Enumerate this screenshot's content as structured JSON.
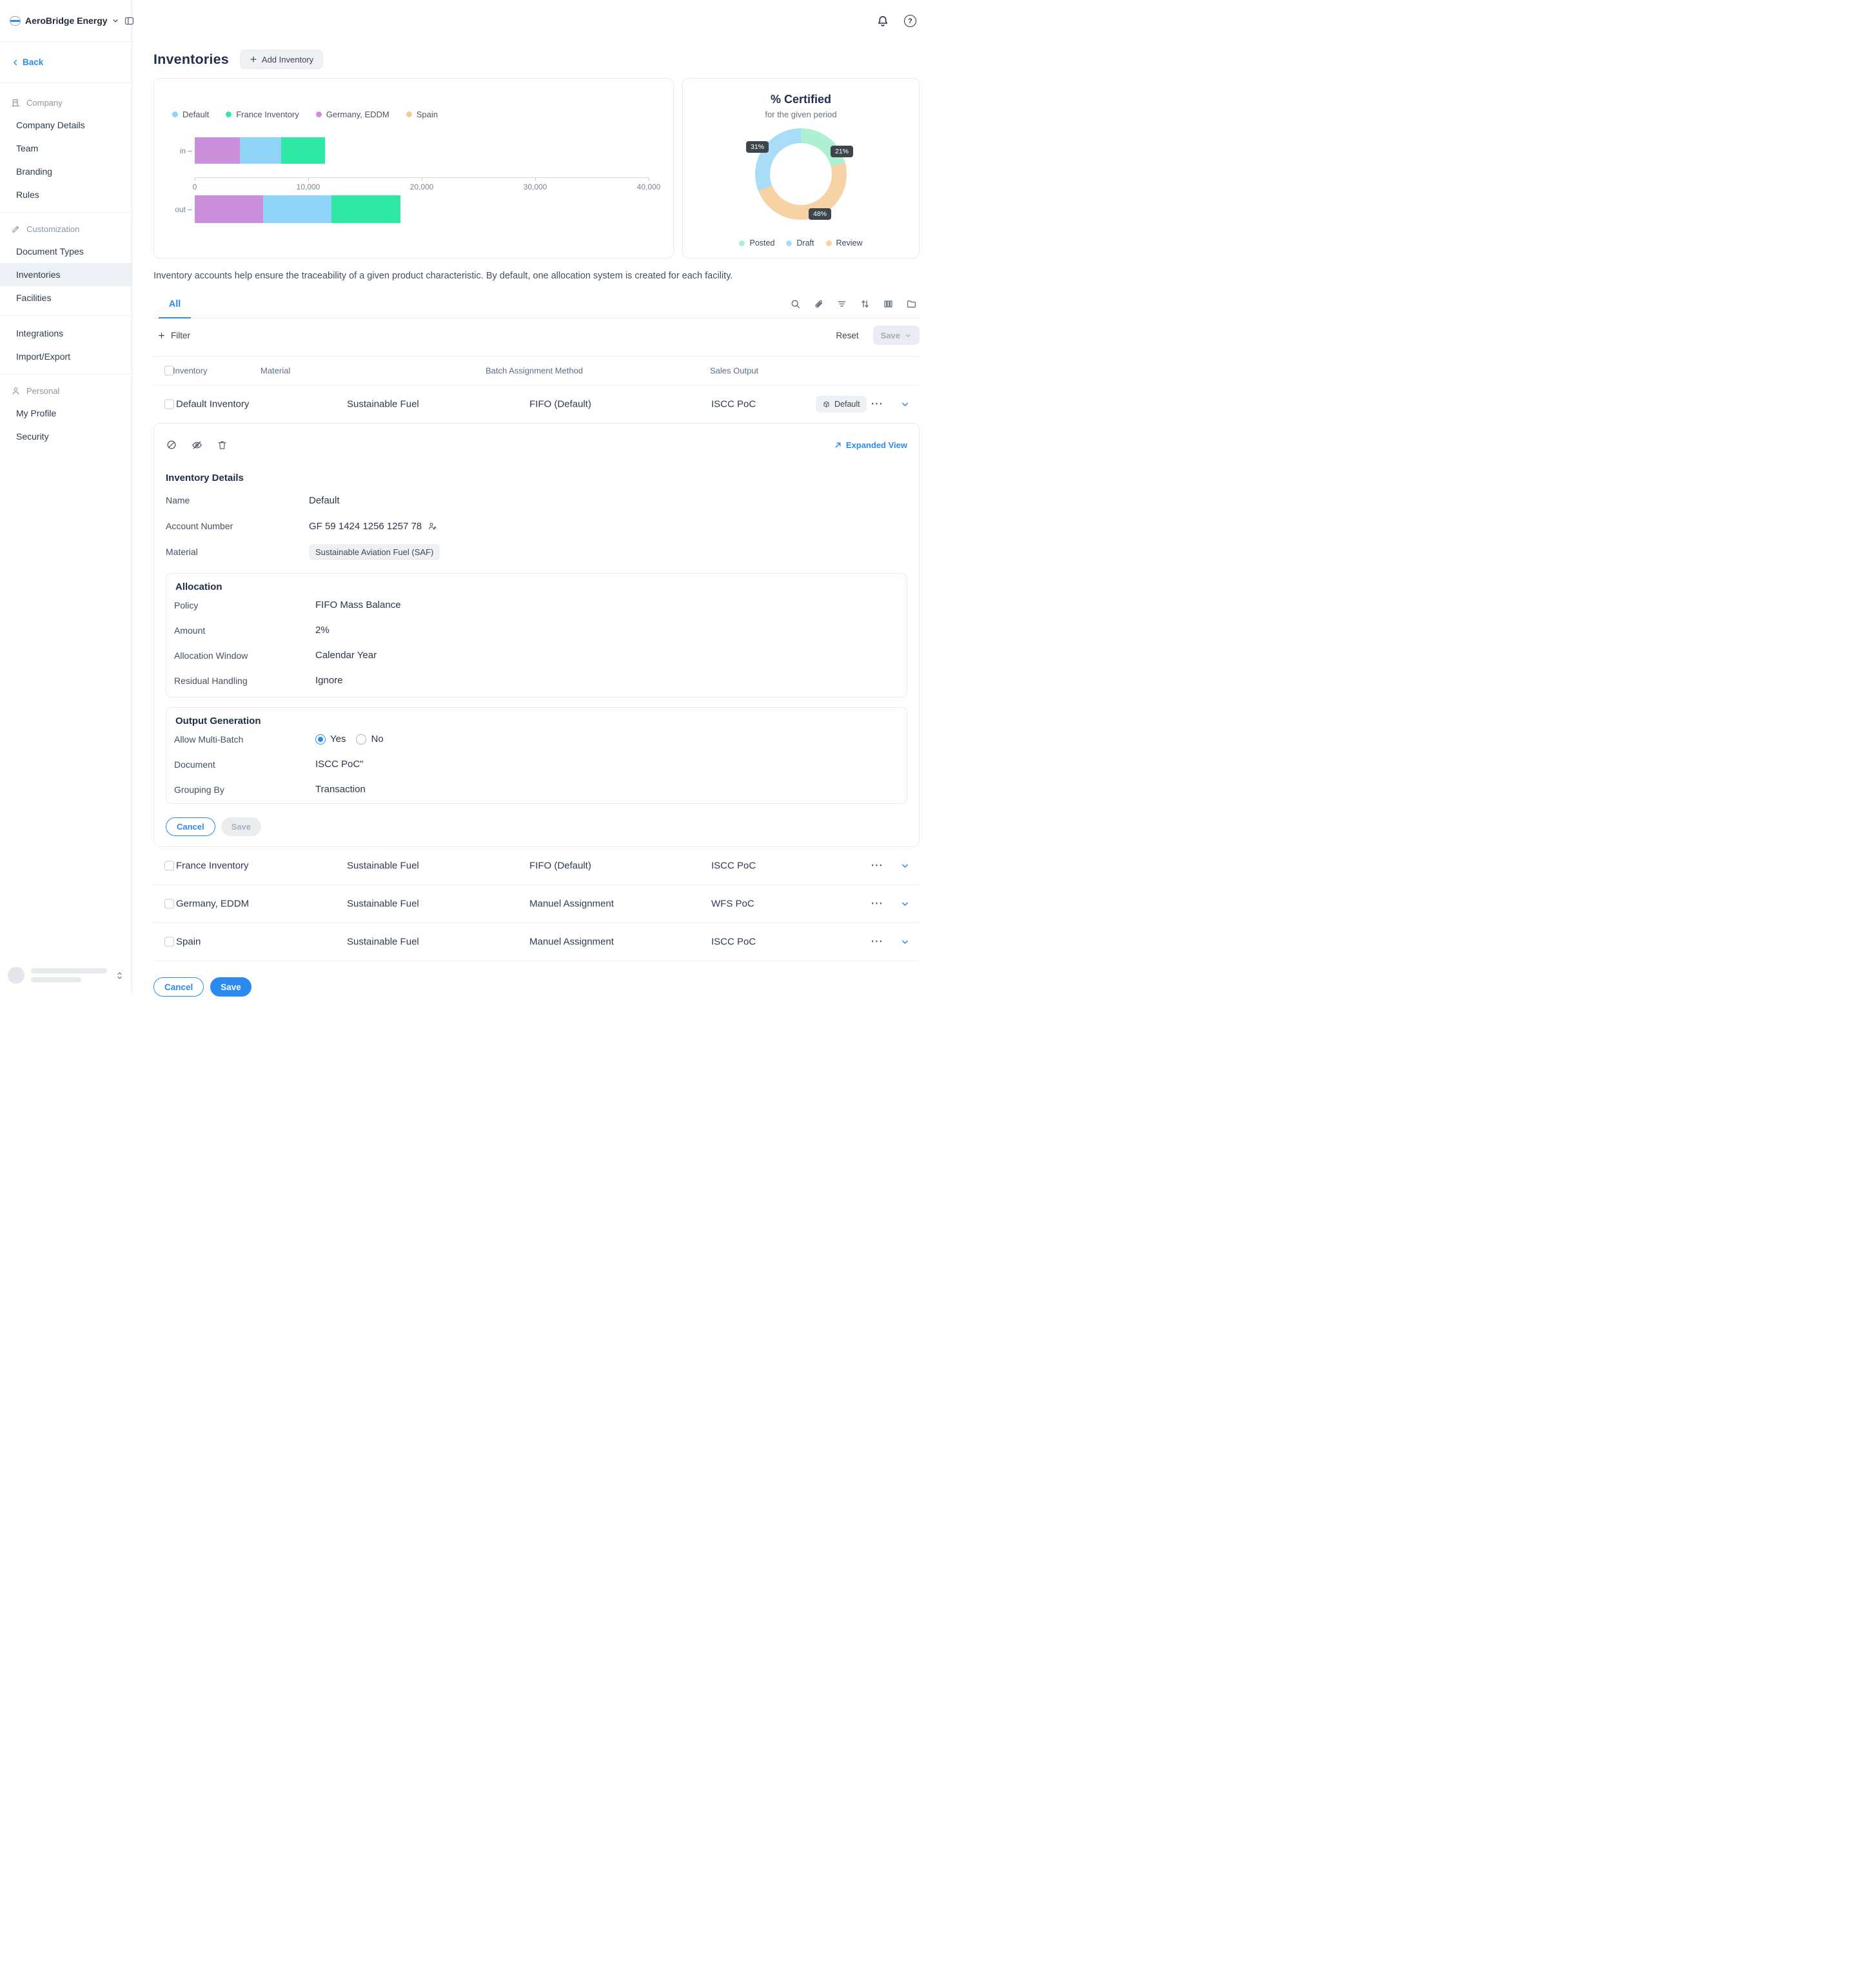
{
  "app": {
    "name": "AeroBridge Energy"
  },
  "colors": {
    "accent": "#2b8af0",
    "badge_bg": "#eef1f4",
    "border": "#e8ebef"
  },
  "icons": {
    "ellipsis": "⋯",
    "question": "?"
  },
  "sidebar": {
    "back_label": "Back",
    "active_item": "Inventories",
    "sections": [
      {
        "label": "Company",
        "items": [
          "Company Details",
          "Team",
          "Branding",
          "Rules"
        ]
      },
      {
        "label": "Customization",
        "items": [
          "Document Types",
          "Inventories",
          "Facilities"
        ]
      },
      {
        "label": "",
        "items": [
          "Integrations",
          "Import/Export"
        ]
      },
      {
        "label": "Personal",
        "items": [
          "My Profile",
          "Security"
        ]
      }
    ]
  },
  "page": {
    "title": "Inventories",
    "add_button_label": "Add Inventory",
    "description": "Inventory accounts help ensure the traceability of a given product characteristic. By default, one allocation system is created for each facility."
  },
  "chart_data": [
    {
      "type": "bar",
      "orientation": "horizontal",
      "stacked": true,
      "categories": [
        "in",
        "out"
      ],
      "series": [
        {
          "name": "Germany, EDDM",
          "color": "#cb90dc",
          "values": [
            3950,
            6000
          ]
        },
        {
          "name": "Default",
          "color": "#8fd3f7",
          "values": [
            3650,
            6050
          ]
        },
        {
          "name": "France Inventory",
          "color": "#2fe8a5",
          "values": [
            3850,
            6050
          ]
        },
        {
          "name": "Spain",
          "color": "#f4ca97",
          "values": [
            0,
            0
          ]
        }
      ],
      "legend": [
        {
          "label": "Default",
          "color": "#8fd3f7"
        },
        {
          "label": "France Inventory",
          "color": "#2fe8a5"
        },
        {
          "label": "Germany, EDDM",
          "color": "#cb90dc"
        },
        {
          "label": "Spain",
          "color": "#f4ca97"
        }
      ],
      "xlim": [
        0,
        40000
      ],
      "xticks": [
        0,
        10000,
        20000,
        30000,
        40000
      ],
      "xtick_labels": [
        "0",
        "10,000",
        "20,000",
        "30,000",
        "40,000"
      ],
      "grid": false,
      "legend_position": "top"
    },
    {
      "type": "donut",
      "title": "% Certified",
      "subtitle": "for the given period",
      "slices": [
        {
          "label": "Posted",
          "value": 21,
          "color": "#aff0d2"
        },
        {
          "label": "Review",
          "value": 48,
          "color": "#f6d2a5"
        },
        {
          "label": "Draft",
          "value": 31,
          "color": "#a9dcf7"
        }
      ],
      "legend": [
        {
          "label": "Posted",
          "color": "#aff0d2"
        },
        {
          "label": "Draft",
          "color": "#a9dcf7"
        },
        {
          "label": "Review",
          "color": "#f6d2a5"
        }
      ],
      "legend_position": "bottom"
    }
  ],
  "tabs": {
    "all_label": "All"
  },
  "filter_bar": {
    "filter_label": "Filter",
    "reset_label": "Reset",
    "save_label": "Save"
  },
  "table": {
    "headers": [
      "Inventory",
      "Material",
      "Batch Assignment Method",
      "Sales Output"
    ],
    "rows": [
      {
        "name": "Default Inventory",
        "material": "Sustainable Fuel",
        "batch": "FIFO (Default)",
        "sales": "ISCC PoC",
        "badge": "Default",
        "expanded": true
      },
      {
        "name": "France Inventory",
        "material": "Sustainable Fuel",
        "batch": "FIFO (Default)",
        "sales": "ISCC PoC"
      },
      {
        "name": "Germany, EDDM",
        "material": "Sustainable Fuel",
        "batch": "Manuel Assignment",
        "sales": "WFS PoC"
      },
      {
        "name": "Spain",
        "material": "Sustainable Fuel",
        "batch": "Manuel Assignment",
        "sales": "ISCC PoC"
      }
    ]
  },
  "detail": {
    "expanded_view_label": "Expanded View",
    "title": "Inventory Details",
    "fields": {
      "name_label": "Name",
      "name_value": "Default",
      "account_label": "Account Number",
      "account_value": "GF 59 1424 1256 1257 78",
      "material_label": "Material",
      "material_value": "Sustainable Aviation Fuel (SAF)"
    },
    "allocation": {
      "title": "Allocation",
      "policy_label": "Policy",
      "policy_value": "FIFO Mass Balance",
      "amount_label": "Amount",
      "amount_value": "2%",
      "window_label": "Allocation Window",
      "window_value": "Calendar Year",
      "residual_label": "Residual Handling",
      "residual_value": "Ignore"
    },
    "output": {
      "title": "Output Generation",
      "multibatch_label": "Allow Multi-Batch",
      "yes_label": "Yes",
      "no_label": "No",
      "document_label": "Document",
      "document_value": "ISCC PoC\"",
      "grouping_label": "Grouping By",
      "grouping_value": "Transaction"
    },
    "cancel_label": "Cancel",
    "save_label": "Save"
  },
  "footer": {
    "cancel_label": "Cancel",
    "save_label": "Save"
  }
}
